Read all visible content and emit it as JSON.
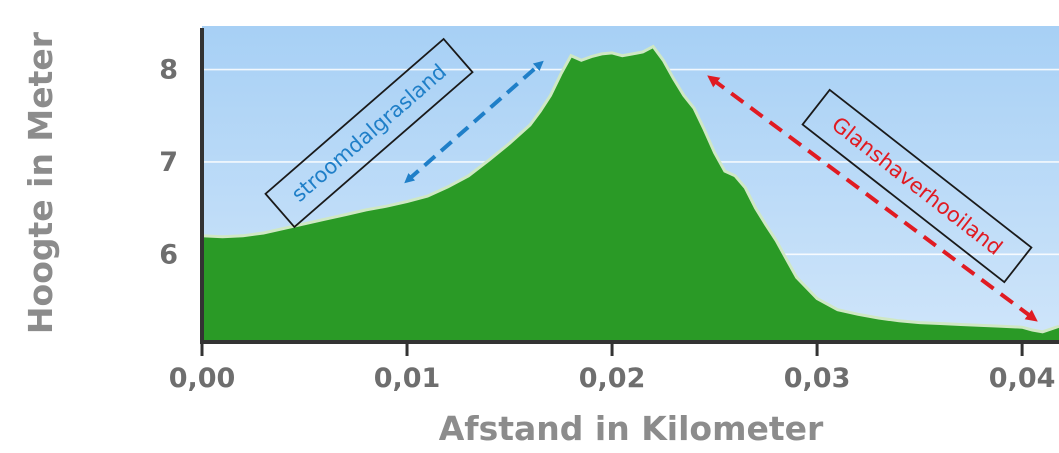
{
  "chart_data": {
    "type": "area",
    "title": "",
    "xlabel": "Afstand in Kilometer",
    "ylabel": "Hoogte in Meter",
    "xlim": [
      0,
      0.0418
    ],
    "ylim": [
      5.05,
      8.45
    ],
    "x_ticks": [
      {
        "value": 0.0,
        "label": "0,00"
      },
      {
        "value": 0.01,
        "label": "0,01"
      },
      {
        "value": 0.02,
        "label": "0,02"
      },
      {
        "value": 0.03,
        "label": "0,03"
      },
      {
        "value": 0.04,
        "label": "0,04"
      }
    ],
    "y_ticks": [
      {
        "value": 6,
        "label": "6"
      },
      {
        "value": 7,
        "label": "7"
      },
      {
        "value": 8,
        "label": "8"
      }
    ],
    "grid": true,
    "colors": {
      "fill": "#2a9a26",
      "line": "#cfe8c4",
      "background_top": "#a7d0f5",
      "background_bottom": "#cfe5fa",
      "axis": "#333333"
    },
    "series": [
      {
        "x": [
          0.0,
          0.001,
          0.002,
          0.003,
          0.004,
          0.005,
          0.006,
          0.007,
          0.008,
          0.009,
          0.01,
          0.011,
          0.012,
          0.013,
          0.014,
          0.015,
          0.016,
          0.0165,
          0.017,
          0.0175,
          0.018,
          0.0185,
          0.019,
          0.0195,
          0.02,
          0.0205,
          0.021,
          0.0215,
          0.022,
          0.0225,
          0.023,
          0.0235,
          0.024,
          0.0245,
          0.025,
          0.0255,
          0.026,
          0.0265,
          0.027,
          0.0275,
          0.028,
          0.0285,
          0.029,
          0.03,
          0.031,
          0.032,
          0.033,
          0.034,
          0.035,
          0.036,
          0.037,
          0.038,
          0.039,
          0.04,
          0.0405,
          0.041,
          0.0418
        ],
        "y": [
          6.2,
          6.19,
          6.2,
          6.23,
          6.28,
          6.33,
          6.38,
          6.43,
          6.48,
          6.52,
          6.57,
          6.63,
          6.73,
          6.85,
          7.02,
          7.2,
          7.4,
          7.55,
          7.72,
          7.95,
          8.15,
          8.1,
          8.14,
          8.17,
          8.18,
          8.15,
          8.17,
          8.19,
          8.25,
          8.1,
          7.9,
          7.72,
          7.58,
          7.35,
          7.1,
          6.9,
          6.85,
          6.72,
          6.5,
          6.32,
          6.15,
          5.95,
          5.75,
          5.52,
          5.4,
          5.35,
          5.31,
          5.28,
          5.26,
          5.25,
          5.24,
          5.23,
          5.22,
          5.21,
          5.18,
          5.16,
          5.22
        ]
      }
    ],
    "annotations": [
      {
        "text": "stroomdalgrasland",
        "color": "#1f7fc8"
      },
      {
        "text": "Glanshaverhooiland",
        "color": "#e01b22"
      }
    ]
  }
}
